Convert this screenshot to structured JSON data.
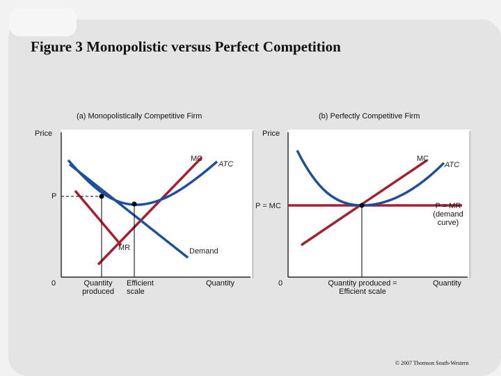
{
  "title": "Figure 3 Monopolistic versus Perfect Competition",
  "panel_a": {
    "heading": "(a) Monopolistically Competitive Firm",
    "y_axis_label": "Price",
    "origin_label": "0",
    "x_axis_label": "Quantity",
    "mc_label": "MC",
    "atc_label": "ATC",
    "mr_label": "MR",
    "demand_label": "Demand",
    "price_label": "P",
    "qty_produced_label_1": "Quantity",
    "qty_produced_label_2": "produced",
    "efficient_scale_label_1": "Efficient",
    "efficient_scale_label_2": "scale"
  },
  "panel_b": {
    "heading": "(b) Perfectly Competitive Firm",
    "y_axis_label": "Price",
    "origin_label": "0",
    "x_axis_label": "Quantity",
    "mc_label": "MC",
    "atc_label": "ATC",
    "p_mc_label": "P = MC",
    "pmr_label_1": "P = MR",
    "pmr_label_2": "(demand",
    "pmr_label_3": "curve)",
    "qty_label_1": "Quantity produced =",
    "qty_label_2": "Efficient scale"
  },
  "copyright": "© 2007 Thomson South-Western",
  "colors": {
    "cost_curve": "#1f4e9c",
    "revenue_curve": "#a3202e",
    "panel_bg": "#ffffff"
  }
}
